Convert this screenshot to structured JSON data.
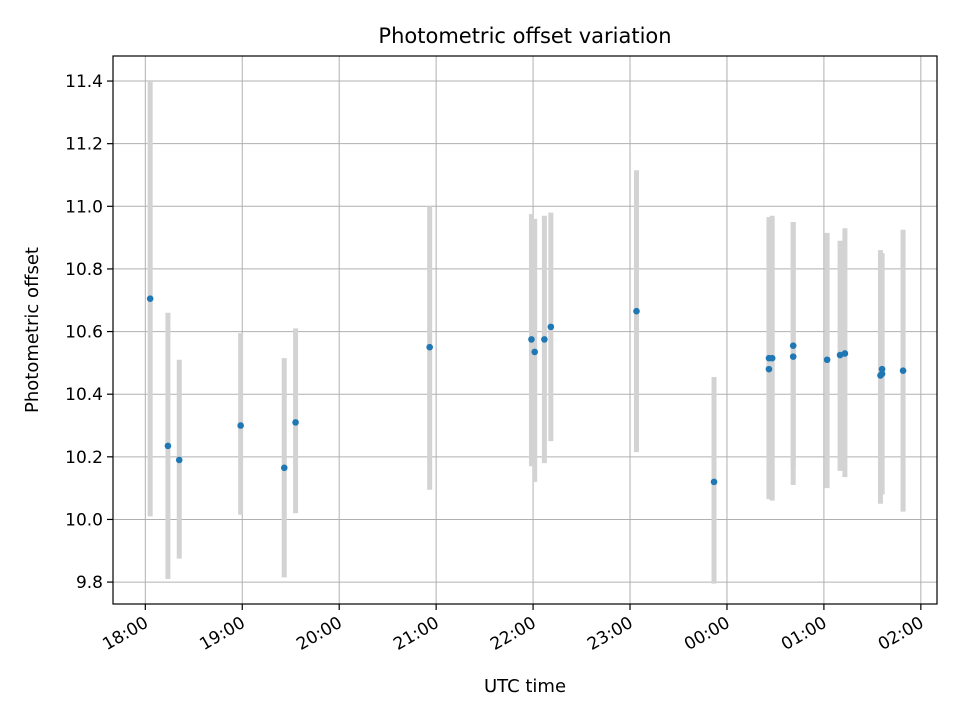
{
  "chart_data": {
    "type": "scatter",
    "title": "Photometric offset variation",
    "xlabel": "UTC time",
    "ylabel": "Photometric offset",
    "xlim": [
      "17:40",
      "02:10"
    ],
    "ylim": [
      9.73,
      11.48
    ],
    "grid": true,
    "x_ticks": [
      "18:00",
      "19:00",
      "20:00",
      "21:00",
      "22:00",
      "23:00",
      "00:00",
      "01:00",
      "02:00"
    ],
    "y_ticks": [
      "9.8",
      "10.0",
      "10.2",
      "10.4",
      "10.6",
      "10.8",
      "11.0",
      "11.2",
      "11.4"
    ],
    "colors": {
      "marker": "#1f77b4",
      "errorbar": "#d3d3d3",
      "grid": "#b0b0b0"
    },
    "points": [
      {
        "time": "18:03",
        "y": 10.705,
        "low": 10.01,
        "high": 11.4
      },
      {
        "time": "18:14",
        "y": 10.235,
        "low": 9.81,
        "high": 10.66
      },
      {
        "time": "18:21",
        "y": 10.19,
        "low": 9.875,
        "high": 10.51
      },
      {
        "time": "18:59",
        "y": 10.3,
        "low": 10.015,
        "high": 10.595
      },
      {
        "time": "19:26",
        "y": 10.165,
        "low": 9.815,
        "high": 10.515
      },
      {
        "time": "19:33",
        "y": 10.31,
        "low": 10.02,
        "high": 10.61
      },
      {
        "time": "20:56",
        "y": 10.55,
        "low": 10.095,
        "high": 11.0
      },
      {
        "time": "21:59",
        "y": 10.575,
        "low": 10.17,
        "high": 10.975
      },
      {
        "time": "22:01",
        "y": 10.535,
        "low": 10.12,
        "high": 10.96
      },
      {
        "time": "22:07",
        "y": 10.575,
        "low": 10.18,
        "high": 10.97
      },
      {
        "time": "22:11",
        "y": 10.615,
        "low": 10.25,
        "high": 10.98
      },
      {
        "time": "23:04",
        "y": 10.665,
        "low": 10.215,
        "high": 11.115
      },
      {
        "time": "23:52",
        "y": 10.12,
        "low": 9.795,
        "high": 10.455
      },
      {
        "time": "00:26",
        "y": 10.515,
        "low": 10.065,
        "high": 10.965
      },
      {
        "time": "00:26",
        "y": 10.48,
        "low": 10.065,
        "high": 10.965
      },
      {
        "time": "00:28",
        "y": 10.515,
        "low": 10.06,
        "high": 10.97
      },
      {
        "time": "00:41",
        "y": 10.555,
        "low": 10.17,
        "high": 10.95
      },
      {
        "time": "00:41",
        "y": 10.52,
        "low": 10.11,
        "high": 10.95
      },
      {
        "time": "01:02",
        "y": 10.51,
        "low": 10.1,
        "high": 10.915
      },
      {
        "time": "01:10",
        "y": 10.525,
        "low": 10.155,
        "high": 10.89
      },
      {
        "time": "01:13",
        "y": 10.53,
        "low": 10.135,
        "high": 10.93
      },
      {
        "time": "01:35",
        "y": 10.46,
        "low": 10.05,
        "high": 10.86
      },
      {
        "time": "01:36",
        "y": 10.48,
        "low": 10.08,
        "high": 10.85
      },
      {
        "time": "01:36",
        "y": 10.465,
        "low": 10.08,
        "high": 10.85
      },
      {
        "time": "01:49",
        "y": 10.475,
        "low": 10.025,
        "high": 10.925
      }
    ]
  }
}
